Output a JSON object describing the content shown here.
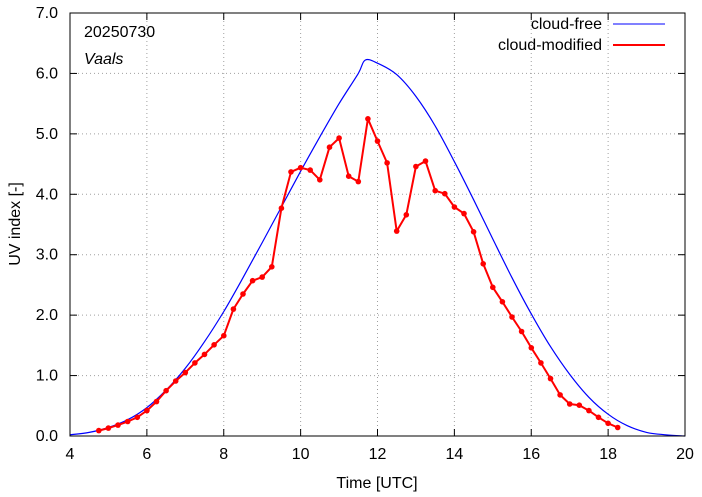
{
  "chart_data": {
    "type": "line",
    "xlabel": "Time  [UTC]",
    "ylabel": "UV index  [-]",
    "xlim": [
      4,
      20
    ],
    "ylim": [
      0,
      7
    ],
    "x_ticks": [
      4,
      6,
      8,
      10,
      12,
      14,
      16,
      18,
      20
    ],
    "x_tick_labels": [
      "4",
      "6",
      "8",
      "10",
      "12",
      "14",
      "16",
      "18",
      "20"
    ],
    "y_ticks": [
      0,
      1,
      2,
      3,
      4,
      5,
      6,
      7
    ],
    "y_tick_labels": [
      "0.0",
      "1.0",
      "2.0",
      "3.0",
      "4.0",
      "5.0",
      "6.0",
      "7.0"
    ],
    "grid": true,
    "legend_position": "top-right",
    "annotations": [
      "20250730",
      "Vaals"
    ],
    "series": [
      {
        "name": "cloud-free",
        "color": "#0000ff",
        "style": "line",
        "peak_x": 11.68,
        "peak_y": 6.22,
        "x": [
          4.0,
          4.5,
          5.0,
          5.5,
          6.0,
          6.5,
          7.0,
          7.5,
          8.0,
          8.5,
          9.0,
          9.5,
          10.0,
          10.5,
          11.0,
          11.5,
          11.68,
          12.0,
          12.5,
          13.0,
          13.5,
          14.0,
          14.5,
          15.0,
          15.5,
          16.0,
          16.5,
          17.0,
          17.5,
          18.0,
          18.5,
          19.0,
          19.5,
          20.0
        ],
        "y": [
          0.02,
          0.06,
          0.14,
          0.27,
          0.47,
          0.76,
          1.12,
          1.56,
          2.06,
          2.62,
          3.2,
          3.79,
          4.38,
          4.95,
          5.5,
          6.0,
          6.22,
          6.17,
          5.98,
          5.62,
          5.13,
          4.54,
          3.91,
          3.26,
          2.62,
          2.02,
          1.48,
          1.02,
          0.64,
          0.36,
          0.17,
          0.06,
          0.02,
          0.0
        ]
      },
      {
        "name": "cloud-modified",
        "color": "#ff0000",
        "style": "line-points",
        "x": [
          4.75,
          5.0,
          5.25,
          5.5,
          5.75,
          6.0,
          6.25,
          6.5,
          6.75,
          7.0,
          7.25,
          7.5,
          7.75,
          8.0,
          8.25,
          8.5,
          8.75,
          9.0,
          9.25,
          9.5,
          9.75,
          10.0,
          10.25,
          10.5,
          10.75,
          11.0,
          11.25,
          11.5,
          11.75,
          12.0,
          12.25,
          12.5,
          12.75,
          13.0,
          13.25,
          13.5,
          13.75,
          14.0,
          14.25,
          14.5,
          14.75,
          15.0,
          15.25,
          15.5,
          15.75,
          16.0,
          16.25,
          16.5,
          16.75,
          17.0,
          17.25,
          17.5,
          17.75,
          18.0,
          18.25
        ],
        "y": [
          0.09,
          0.13,
          0.18,
          0.24,
          0.31,
          0.42,
          0.57,
          0.75,
          0.91,
          1.05,
          1.21,
          1.35,
          1.51,
          1.66,
          2.1,
          2.35,
          2.57,
          2.63,
          2.8,
          3.77,
          4.37,
          4.44,
          4.4,
          4.24,
          4.78,
          4.93,
          4.3,
          4.21,
          5.25,
          4.88,
          4.52,
          3.39,
          3.66,
          4.46,
          4.55,
          4.06,
          4.01,
          3.79,
          3.68,
          3.38,
          2.85,
          2.46,
          2.22,
          1.97,
          1.73,
          1.46,
          1.21,
          0.95,
          0.68,
          0.53,
          0.51,
          0.42,
          0.31,
          0.21,
          0.14
        ]
      }
    ]
  }
}
